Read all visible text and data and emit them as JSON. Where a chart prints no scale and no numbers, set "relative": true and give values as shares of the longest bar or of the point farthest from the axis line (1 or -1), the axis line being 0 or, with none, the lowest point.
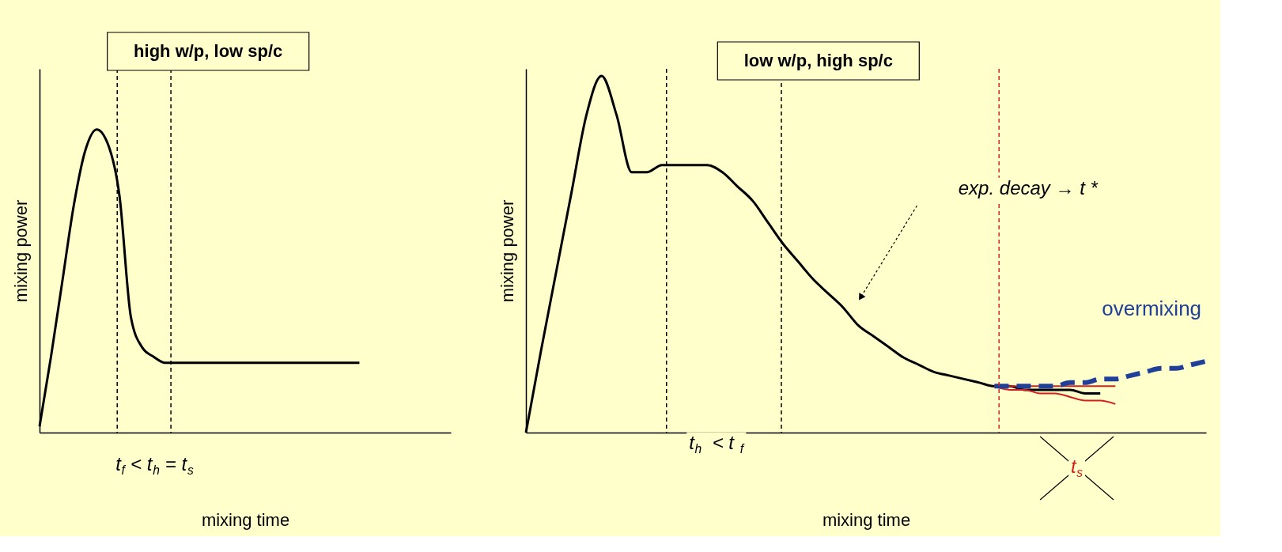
{
  "chart_data": [
    {
      "type": "line",
      "relative": true,
      "tick_labels": false,
      "title": "high w/p, low sp/c",
      "xlabel": "mixing time",
      "ylabel": "mixing power",
      "categories": [
        null,
        null,
        null,
        null,
        null,
        null,
        null,
        null,
        null,
        null,
        null,
        null,
        null,
        null,
        null,
        null,
        null,
        null,
        null,
        null,
        null,
        null,
        null,
        null,
        null,
        null,
        null,
        null,
        null,
        null,
        null,
        null,
        null,
        null,
        null,
        null,
        null
      ],
      "series": [
        {
          "color": "#000000",
          "values": [
            0.02,
            0.25,
            0.5,
            0.75,
            0.93,
            1.0,
            0.95,
            0.78,
            0.38,
            0.28,
            0.25,
            0.23,
            0.23,
            0.23,
            0.23,
            0.23,
            0.23,
            0.23,
            0.23,
            0.23,
            0.23,
            0.23,
            0.23,
            0.23,
            0.23,
            0.23,
            0.23,
            0.23,
            0.23,
            null,
            null,
            null,
            null,
            null,
            null,
            null,
            null
          ]
        }
      ],
      "annotations": [
        "t$_{f}$ < t$_{h}$ = t$_{s}$"
      ]
    },
    {
      "type": "line",
      "relative": true,
      "tick_labels": false,
      "title": "low w/p, high sp/c",
      "xlabel": "mixing time",
      "ylabel": "mixing power",
      "categories": [
        null,
        null,
        null,
        null,
        null,
        null,
        null,
        null,
        null,
        null,
        null,
        null,
        null,
        null,
        null,
        null,
        null,
        null,
        null,
        null,
        null,
        null,
        null,
        null,
        null,
        null,
        null,
        null,
        null,
        null,
        null,
        null,
        null,
        null,
        null,
        null,
        null,
        null,
        null,
        null,
        null,
        null,
        null,
        null,
        null,
        null
      ],
      "series": [
        {
          "color": "#000000",
          "values": [
            0,
            0.23,
            0.45,
            0.67,
            0.89,
            1.0,
            0.89,
            0.73,
            0.73,
            0.75,
            0.75,
            0.75,
            0.75,
            0.73,
            0.69,
            0.65,
            0.59,
            0.53,
            0.48,
            0.43,
            0.39,
            0.35,
            0.3,
            0.27,
            0.24,
            0.21,
            0.19,
            0.17,
            0.16,
            0.15,
            0.14,
            0.13,
            0.13,
            0.12,
            0.12,
            0.12,
            0.12,
            0.11,
            0.11,
            null,
            null,
            null,
            null,
            null,
            null,
            null
          ]
        },
        {
          "color": "#d62020",
          "values": [
            null,
            null,
            null,
            null,
            null,
            null,
            null,
            null,
            null,
            null,
            null,
            null,
            null,
            null,
            null,
            null,
            null,
            null,
            null,
            null,
            null,
            null,
            null,
            null,
            null,
            null,
            null,
            null,
            null,
            null,
            null,
            0.13,
            0.12,
            0.12,
            0.11,
            0.11,
            0.1,
            0.09,
            0.09,
            0.08,
            null,
            null,
            null,
            null,
            null,
            null
          ]
        },
        {
          "color": "#d62020",
          "values": [
            null,
            null,
            null,
            null,
            null,
            null,
            null,
            null,
            null,
            null,
            null,
            null,
            null,
            null,
            null,
            null,
            null,
            null,
            null,
            null,
            null,
            null,
            null,
            null,
            null,
            null,
            null,
            null,
            null,
            null,
            null,
            0.13,
            0.13,
            0.13,
            0.13,
            0.13,
            0.13,
            0.13,
            0.13,
            0.13,
            null,
            null,
            null,
            null,
            null,
            null
          ]
        },
        {
          "name": "overmixing",
          "color": "#1f3f99",
          "line_style": "dashed",
          "values": [
            null,
            null,
            null,
            null,
            null,
            null,
            null,
            null,
            null,
            null,
            null,
            null,
            null,
            null,
            null,
            null,
            null,
            null,
            null,
            null,
            null,
            null,
            null,
            null,
            null,
            null,
            null,
            null,
            null,
            null,
            null,
            0.13,
            0.13,
            0.13,
            0.13,
            0.13,
            0.14,
            0.14,
            0.15,
            0.15,
            0.16,
            0.17,
            0.18,
            0.18,
            0.19,
            0.2
          ]
        }
      ],
      "annotations": [
        "t$_{h}$  <  t$_{f}$",
        "exp. decay → t *",
        "t$_{s}$"
      ]
    }
  ]
}
